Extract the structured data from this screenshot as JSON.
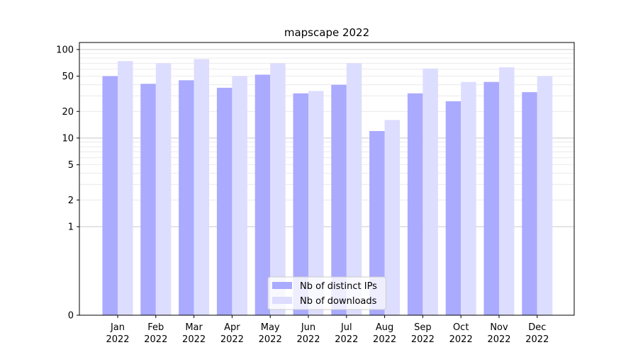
{
  "chart_data": {
    "type": "bar",
    "title": "mapscape 2022",
    "xlabel": "",
    "ylabel": "",
    "yscale": "symlog",
    "ylim": [
      0,
      120
    ],
    "grid": true,
    "legend_position": "bottom-center",
    "categories": [
      [
        "Jan",
        "2022"
      ],
      [
        "Feb",
        "2022"
      ],
      [
        "Mar",
        "2022"
      ],
      [
        "Apr",
        "2022"
      ],
      [
        "May",
        "2022"
      ],
      [
        "Jun",
        "2022"
      ],
      [
        "Jul",
        "2022"
      ],
      [
        "Aug",
        "2022"
      ],
      [
        "Sep",
        "2022"
      ],
      [
        "Oct",
        "2022"
      ],
      [
        "Nov",
        "2022"
      ],
      [
        "Dec",
        "2022"
      ]
    ],
    "y_ticks": [
      0,
      1,
      2,
      5,
      10,
      20,
      50,
      100
    ],
    "series": [
      {
        "name": "Nb of distinct IPs",
        "color": "#aaaaff",
        "values": [
          50,
          41,
          45,
          37,
          52,
          32,
          40,
          12,
          32,
          26,
          43,
          33
        ]
      },
      {
        "name": "Nb of downloads",
        "color": "#ddddff",
        "values": [
          74,
          70,
          78,
          50,
          70,
          34,
          70,
          16,
          61,
          43,
          63,
          50
        ]
      }
    ]
  }
}
